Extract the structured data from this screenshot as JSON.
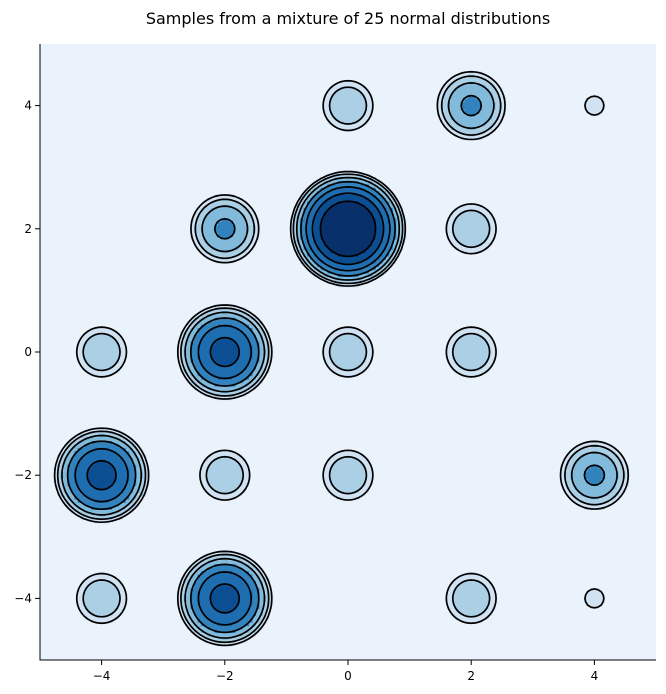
{
  "chart_data": {
    "type": "contour",
    "title": "Samples from a mixture of 25 normal distributions",
    "xlabel": "",
    "ylabel": "",
    "xlim": [
      -5,
      5
    ],
    "ylim": [
      -5,
      5
    ],
    "xticks": [
      -4,
      -2,
      0,
      2,
      4
    ],
    "yticks": [
      -4,
      -2,
      0,
      2,
      4
    ],
    "xtick_labels": [
      "−4",
      "−2",
      "0",
      "2",
      "4"
    ],
    "ytick_labels": [
      "−4",
      "−2",
      "0",
      "2",
      "4"
    ],
    "grid": false,
    "legend": "none",
    "colormap": "Blues",
    "spines": [
      "left",
      "bottom"
    ],
    "levels": [
      {
        "level": 1,
        "color": "#d1e2f3"
      },
      {
        "level": 2,
        "color": "#abd0e6"
      },
      {
        "level": 3,
        "color": "#81badb"
      },
      {
        "level": 4,
        "color": "#3282be"
      },
      {
        "level": 5,
        "color": "#1f6db1"
      },
      {
        "level": 6,
        "color": "#0b4e92"
      },
      {
        "level": 7,
        "color": "#08306b"
      }
    ],
    "background_color": "#eaf2fc",
    "line_color": "#000000",
    "modes": [
      {
        "x": -4,
        "y": -4,
        "level": 2
      },
      {
        "x": -4,
        "y": -2,
        "level": 5
      },
      {
        "x": -4,
        "y": 0,
        "level": 2
      },
      {
        "x": -2,
        "y": -4,
        "level": 5
      },
      {
        "x": -2,
        "y": -2,
        "level": 2
      },
      {
        "x": -2,
        "y": 0,
        "level": 5
      },
      {
        "x": -2,
        "y": 2,
        "level": 3
      },
      {
        "x": 0,
        "y": -2,
        "level": 2
      },
      {
        "x": 0,
        "y": 0,
        "level": 2
      },
      {
        "x": 0,
        "y": 2,
        "level": 7
      },
      {
        "x": 0,
        "y": 4,
        "level": 2
      },
      {
        "x": 2,
        "y": -4,
        "level": 2
      },
      {
        "x": 2,
        "y": 0,
        "level": 2
      },
      {
        "x": 2,
        "y": 2,
        "level": 2
      },
      {
        "x": 2,
        "y": 4,
        "level": 3
      },
      {
        "x": 4,
        "y": -4,
        "level": 1
      },
      {
        "x": 4,
        "y": -2,
        "level": 3
      },
      {
        "x": 4,
        "y": 4,
        "level": 1
      }
    ]
  }
}
